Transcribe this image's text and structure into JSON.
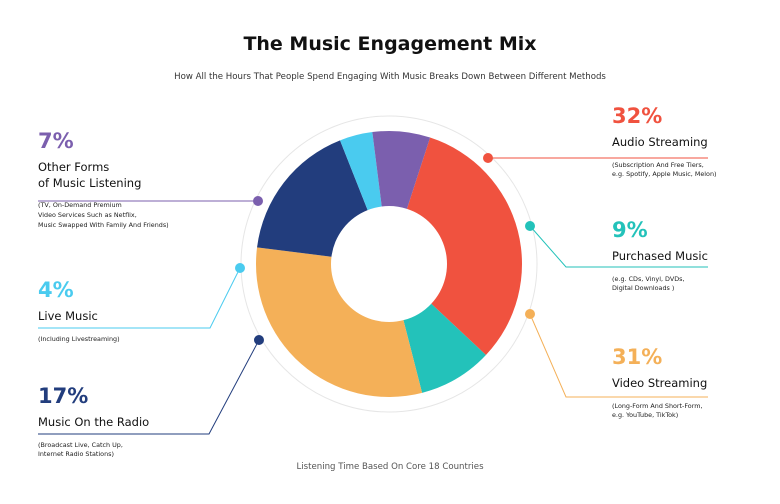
{
  "title": "The Music Engagement Mix",
  "subtitle": "How All the Hours That People Spend Engaging With Music Breaks Down Between Different Methods",
  "footer": "Listening Time Based On Core 18 Countries",
  "chart_data": {
    "type": "pie",
    "title": "The Music Engagement Mix",
    "donut": true,
    "slices": [
      {
        "name": "Audio Streaming",
        "value": 32,
        "label": "32%",
        "color": "#F0523F",
        "note": [
          "(Subscription And Free Tiers,",
          "e.g. Spotify, Apple Music, Melon)"
        ]
      },
      {
        "name": "Purchased Music",
        "value": 9,
        "label": "9%",
        "color": "#23C2BA",
        "note": [
          "(e.g. CDs, Vinyl, DVDs,",
          "Digital Downloads )"
        ]
      },
      {
        "name": "Video Streaming",
        "value": 31,
        "label": "31%",
        "color": "#F4B058",
        "note": [
          "(Long-Form And Short-Form,",
          "e.g. YouTube, TikTok)"
        ]
      },
      {
        "name": "Music On the Radio",
        "value": 17,
        "label": "17%",
        "color": "#223D7D",
        "note": [
          "(Broadcast Live, Catch Up,",
          "Internet Radio Stations)"
        ]
      },
      {
        "name": "Live Music",
        "value": 4,
        "label": "4%",
        "color": "#4ACBEF",
        "note": [
          "(Including Livestreaming)"
        ]
      },
      {
        "name": "Other Forms\nof Music Listening",
        "value": 7,
        "label": "7%",
        "color": "#7B5FAE",
        "note": [
          "(TV, On-Demand Premium",
          "Video Services Such as Netflix,",
          "Music Swapped With Family And Friends)"
        ]
      }
    ]
  }
}
